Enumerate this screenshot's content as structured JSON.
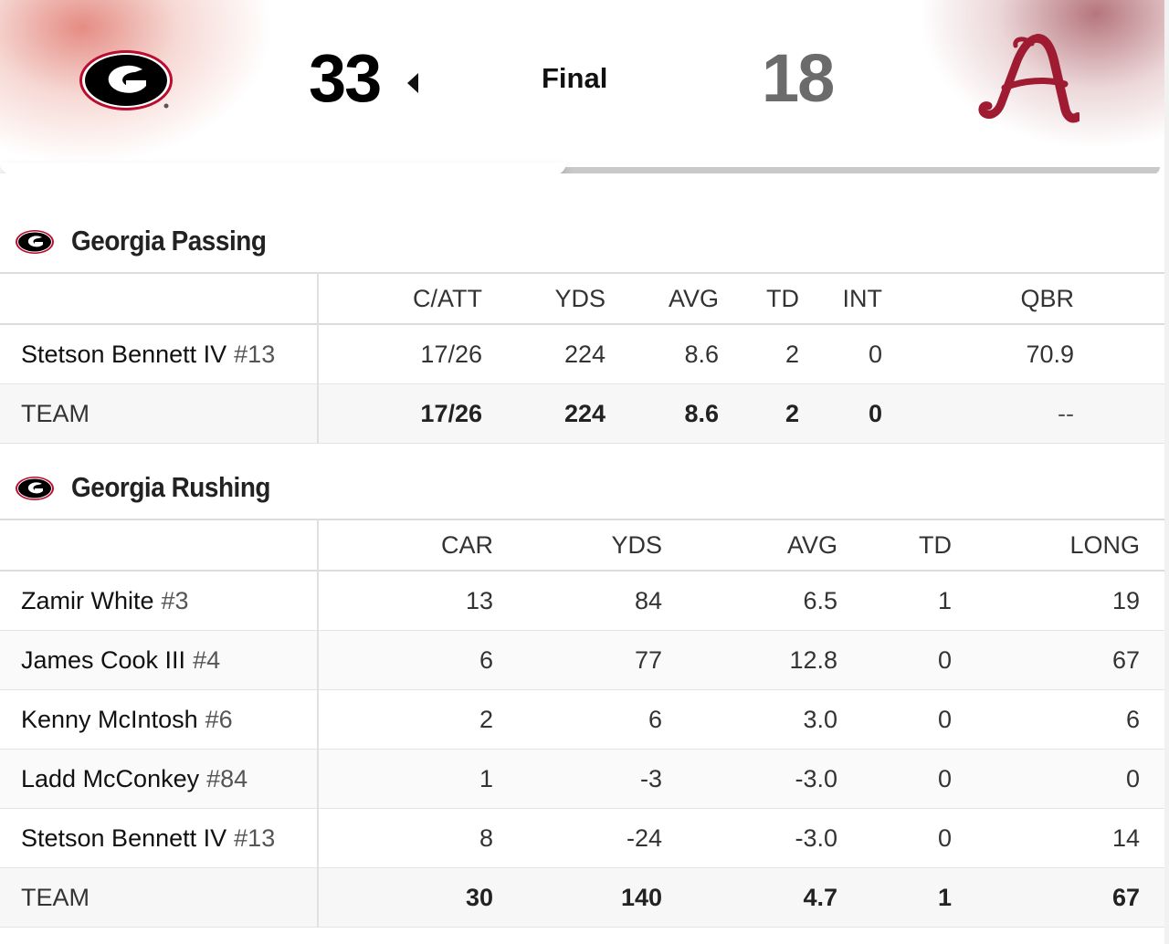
{
  "scoreboard": {
    "home_team_logo": "georgia-g-logo",
    "home_score": "33",
    "status": "Final",
    "away_score": "18",
    "away_team_logo": "alabama-script-a-logo",
    "winner_indicator": "left-arrow-icon",
    "colors": {
      "home_red": "#BA0C2F",
      "home_black": "#000000",
      "away_crimson": "#9E1B32",
      "away_score_gray": "#6B6B6B"
    }
  },
  "passing": {
    "title": "Georgia Passing",
    "columns": [
      "C/ATT",
      "YDS",
      "AVG",
      "TD",
      "INT",
      "QBR"
    ],
    "players": [
      {
        "name": "Stetson Bennett IV",
        "jersey": "#13",
        "stats": [
          "17/26",
          "224",
          "8.6",
          "2",
          "0",
          "70.9"
        ]
      }
    ],
    "team": {
      "label": "TEAM",
      "stats": [
        "17/26",
        "224",
        "8.6",
        "2",
        "0",
        "--"
      ]
    }
  },
  "rushing": {
    "title": "Georgia Rushing",
    "columns": [
      "CAR",
      "YDS",
      "AVG",
      "TD",
      "LONG"
    ],
    "players": [
      {
        "name": "Zamir White",
        "jersey": "#3",
        "stats": [
          "13",
          "84",
          "6.5",
          "1",
          "19"
        ]
      },
      {
        "name": "James Cook III",
        "jersey": "#4",
        "stats": [
          "6",
          "77",
          "12.8",
          "0",
          "67"
        ]
      },
      {
        "name": "Kenny McIntosh",
        "jersey": "#6",
        "stats": [
          "2",
          "6",
          "3.0",
          "0",
          "6"
        ]
      },
      {
        "name": "Ladd McConkey",
        "jersey": "#84",
        "stats": [
          "1",
          "-3",
          "-3.0",
          "0",
          "0"
        ]
      },
      {
        "name": "Stetson Bennett IV",
        "jersey": "#13",
        "stats": [
          "8",
          "-24",
          "-3.0",
          "0",
          "14"
        ]
      }
    ],
    "team": {
      "label": "TEAM",
      "stats": [
        "30",
        "140",
        "4.7",
        "1",
        "67"
      ]
    }
  }
}
